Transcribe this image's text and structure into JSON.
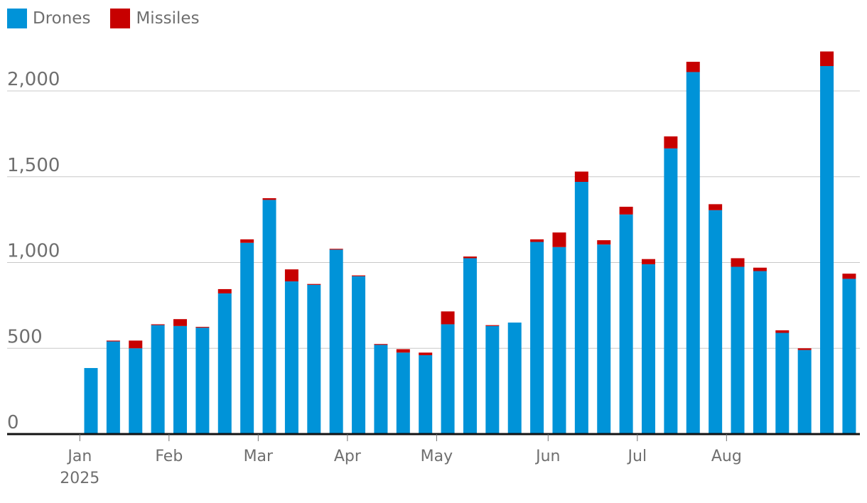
{
  "legend": [
    {
      "label": "Drones",
      "color": "#0093d8"
    },
    {
      "label": "Missiles",
      "color": "#c70000"
    }
  ],
  "chart_data": {
    "type": "bar",
    "stacked": true,
    "title": "",
    "xlabel": "",
    "ylabel": "",
    "ylim": [
      0,
      2200
    ],
    "yticks": [
      0,
      500,
      1000,
      1500,
      2000
    ],
    "ytick_labels": [
      "0",
      "500",
      "1,000",
      "1,500",
      "2,000"
    ],
    "grid": true,
    "legend_placement": "top-left",
    "xtick_labels": [
      {
        "label": "Jan",
        "sub": "2025",
        "after_week": 0
      },
      {
        "label": "Feb",
        "sub": "",
        "after_week": 4
      },
      {
        "label": "Mar",
        "sub": "",
        "after_week": 8
      },
      {
        "label": "Apr",
        "sub": "",
        "after_week": 12
      },
      {
        "label": "May",
        "sub": "",
        "after_week": 16
      },
      {
        "label": "Jun",
        "sub": "",
        "after_week": 21
      },
      {
        "label": "Jul",
        "sub": "",
        "after_week": 25
      },
      {
        "label": "Aug",
        "sub": "",
        "after_week": 29
      }
    ],
    "series": [
      {
        "name": "Drones",
        "color": "#0093d8",
        "values": [
          385,
          540,
          500,
          635,
          630,
          620,
          820,
          1115,
          1365,
          890,
          870,
          1075,
          920,
          520,
          475,
          460,
          640,
          1025,
          630,
          650,
          1120,
          1090,
          1470,
          1105,
          1280,
          990,
          1665,
          2110,
          1305,
          975,
          950,
          590,
          490,
          2145,
          905
        ]
      },
      {
        "name": "Missiles",
        "color": "#c70000",
        "values": [
          0,
          5,
          45,
          5,
          40,
          5,
          25,
          20,
          10,
          70,
          5,
          5,
          5,
          5,
          20,
          15,
          75,
          10,
          5,
          0,
          15,
          85,
          60,
          25,
          45,
          30,
          70,
          60,
          35,
          50,
          20,
          15,
          10,
          85,
          30
        ]
      }
    ]
  }
}
